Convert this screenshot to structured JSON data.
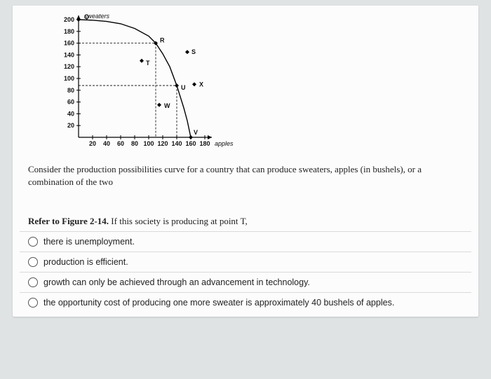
{
  "chart": {
    "type": "ppc-curve",
    "y_label": "sweaters",
    "x_label": "apples",
    "ylim": [
      0,
      200
    ],
    "xlim": [
      0,
      180
    ],
    "ytick_step": 20,
    "xtick_step": 20,
    "yticks": [
      20,
      40,
      60,
      80,
      100,
      120,
      140,
      160,
      180,
      200
    ],
    "xticks": [
      20,
      40,
      60,
      80,
      100,
      120,
      140,
      160,
      180
    ],
    "curve": [
      {
        "x": 0,
        "y": 200
      },
      {
        "x": 20,
        "y": 199
      },
      {
        "x": 40,
        "y": 197
      },
      {
        "x": 60,
        "y": 193
      },
      {
        "x": 80,
        "y": 185
      },
      {
        "x": 100,
        "y": 172
      },
      {
        "x": 110,
        "y": 160
      },
      {
        "x": 120,
        "y": 142
      },
      {
        "x": 130,
        "y": 120
      },
      {
        "x": 140,
        "y": 88
      },
      {
        "x": 150,
        "y": 50
      },
      {
        "x": 155,
        "y": 28
      },
      {
        "x": 160,
        "y": 0
      }
    ],
    "points": {
      "Q": {
        "x": 0,
        "y": 200,
        "on_curve": true
      },
      "R": {
        "x": 110,
        "y": 160,
        "on_curve": true
      },
      "S": {
        "x": 155,
        "y": 145,
        "on_curve": false
      },
      "T": {
        "x": 90,
        "y": 130,
        "on_curve": false
      },
      "U": {
        "x": 140,
        "y": 88,
        "on_curve": true
      },
      "W": {
        "x": 115,
        "y": 55,
        "on_curve": false
      },
      "X": {
        "x": 165,
        "y": 90,
        "on_curve": false
      },
      "V": {
        "x": 160,
        "y": 0,
        "on_curve": true
      }
    },
    "dash_lines": [
      {
        "from": {
          "x": 0,
          "y": 160
        },
        "to": {
          "x": 110,
          "y": 160
        }
      },
      {
        "from": {
          "x": 110,
          "y": 160
        },
        "to": {
          "x": 110,
          "y": 0
        }
      },
      {
        "from": {
          "x": 0,
          "y": 88
        },
        "to": {
          "x": 140,
          "y": 88
        }
      },
      {
        "from": {
          "x": 140,
          "y": 88
        },
        "to": {
          "x": 140,
          "y": 0
        }
      }
    ],
    "colors": {
      "axis": "#000000",
      "curve": "#000000",
      "dash": "#000000",
      "bg": "#fcfcfc"
    },
    "line_width": 1.4
  },
  "description": "Consider the production possibilities curve for a country that can produce sweaters, apples (in bushels), or a combination of the two",
  "prompt_prefix": "Refer to Figure 2-14.",
  "prompt_rest": " If this society is producing at point T,",
  "options": [
    {
      "text": "there is unemployment.",
      "selected": true
    },
    {
      "text": "production is efficient.",
      "selected": false
    },
    {
      "text": "growth can only be achieved through an advancement in technology.",
      "selected": false
    },
    {
      "text": "the opportunity cost of producing one more sweater is approximately 40 bushels of apples.",
      "selected": false
    }
  ]
}
